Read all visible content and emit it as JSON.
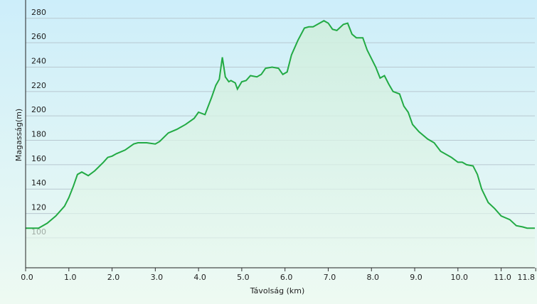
{
  "chart_data": {
    "type": "line",
    "fill": true,
    "grid": true,
    "color": "#22aa44",
    "x_label": "Távolság (km)",
    "y_label": "Magasság(m)",
    "xlim": [
      0,
      11.78
    ],
    "ylim": [
      75.5,
      295
    ],
    "xticks": [
      {
        "value": 0,
        "label": "0.0"
      },
      {
        "value": 1,
        "label": "1.0"
      },
      {
        "value": 2,
        "label": "2.0"
      },
      {
        "value": 3,
        "label": "3.0"
      },
      {
        "value": 4,
        "label": "4.0"
      },
      {
        "value": 5,
        "label": "5.0"
      },
      {
        "value": 6,
        "label": "6.0"
      },
      {
        "value": 7,
        "label": "7.0"
      },
      {
        "value": 8,
        "label": "8.0"
      },
      {
        "value": 9,
        "label": "9.0"
      },
      {
        "value": 10,
        "label": "10.0"
      },
      {
        "value": 11,
        "label": "11.0"
      },
      11.8
    ],
    "yticks": [
      100,
      120,
      140,
      160,
      180,
      200,
      220,
      240,
      260,
      280
    ],
    "x": [
      0.0,
      0.3,
      0.5,
      0.7,
      0.9,
      1.0,
      1.1,
      1.2,
      1.3,
      1.45,
      1.6,
      1.8,
      1.9,
      2.0,
      2.1,
      2.3,
      2.5,
      2.6,
      2.8,
      3.0,
      3.1,
      3.3,
      3.5,
      3.7,
      3.9,
      4.0,
      4.15,
      4.3,
      4.4,
      4.48,
      4.55,
      4.62,
      4.7,
      4.75,
      4.85,
      4.9,
      5.0,
      5.1,
      5.2,
      5.35,
      5.45,
      5.55,
      5.7,
      5.85,
      5.95,
      6.05,
      6.15,
      6.3,
      6.45,
      6.55,
      6.65,
      6.8,
      6.9,
      7.0,
      7.1,
      7.2,
      7.35,
      7.45,
      7.55,
      7.65,
      7.8,
      7.9,
      8.1,
      8.2,
      8.3,
      8.4,
      8.5,
      8.65,
      8.75,
      8.85,
      8.95,
      9.1,
      9.3,
      9.45,
      9.6,
      9.75,
      9.85,
      10.0,
      10.1,
      10.2,
      10.35,
      10.45,
      10.55,
      10.7,
      10.85,
      11.0,
      11.2,
      11.35,
      11.5,
      11.6,
      11.78
    ],
    "values": [
      108,
      108,
      112,
      118,
      126,
      133,
      142,
      152,
      154,
      151,
      155,
      162,
      166,
      167,
      169,
      172,
      177,
      178,
      178,
      177,
      179,
      186,
      189,
      193,
      198,
      203,
      201,
      215,
      225,
      230,
      248,
      232,
      228,
      229,
      227,
      222,
      228,
      229,
      233,
      232,
      234,
      239,
      240,
      239,
      234,
      236,
      250,
      262,
      272,
      273,
      273,
      276,
      278,
      276,
      271,
      270,
      275,
      276,
      267,
      264,
      264,
      254,
      240,
      231,
      233,
      226,
      220,
      218,
      208,
      203,
      193,
      187,
      181,
      178,
      171,
      168,
      166,
      162,
      162,
      160,
      159,
      152,
      140,
      129,
      124,
      118,
      115,
      110,
      109,
      108,
      108
    ]
  }
}
